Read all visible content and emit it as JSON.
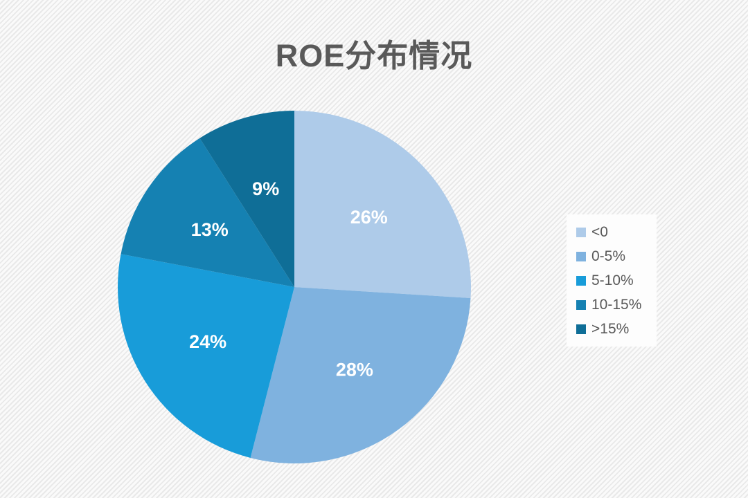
{
  "title": "ROE分布情况",
  "chart_data": {
    "type": "pie",
    "title": "ROE分布情况",
    "categories": [
      "<0",
      "0-5%",
      "5-10%",
      "10-15%",
      ">15%"
    ],
    "values": [
      26,
      28,
      24,
      13,
      9
    ],
    "labels": [
      "26%",
      "28%",
      "24%",
      "13%",
      "9%"
    ],
    "colors": [
      "#AECBE9",
      "#7FB2DF",
      "#189CD9",
      "#1581B2",
      "#0F6E97"
    ],
    "start_angle_deg": 0,
    "direction": "clockwise",
    "legend_position": "right",
    "label_color": "#FFFFFF"
  },
  "styles": {
    "title_color": "#595959",
    "legend_text_color": "#595959",
    "legend_background": "#FDFDFD"
  }
}
